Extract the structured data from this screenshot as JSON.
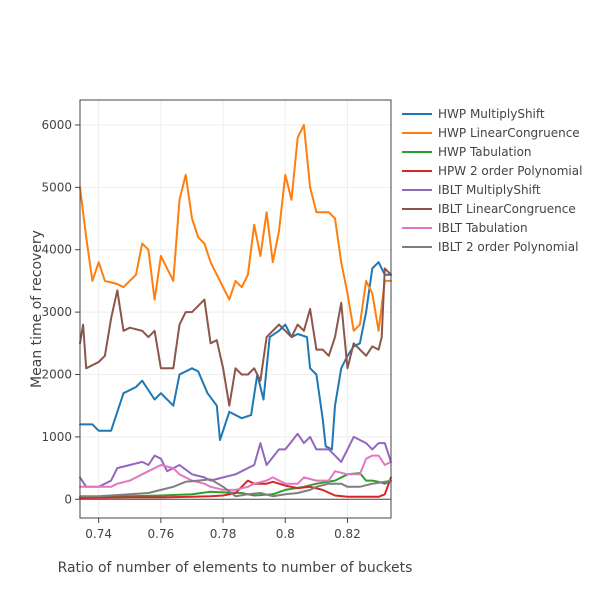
{
  "chart_data": {
    "type": "line",
    "xlabel": "Ratio of number of elements to number of buckets",
    "ylabel": "Mean time of recovery",
    "xlim": [
      0.734,
      0.834
    ],
    "ylim": [
      -300,
      6400
    ],
    "x_ticks": [
      0.74,
      0.76,
      0.78,
      0.8,
      0.82
    ],
    "x_tick_labels": [
      "0.74",
      "0.76",
      "0.78",
      "0.8",
      "0.82"
    ],
    "y_ticks": [
      0,
      1000,
      2000,
      3000,
      4000,
      5000,
      6000
    ],
    "y_tick_labels": [
      "0",
      "1000",
      "2000",
      "3000",
      "4000",
      "5000",
      "6000"
    ],
    "grid": true,
    "legend_position": "right",
    "series": [
      {
        "name": "HWP MultiplyShift",
        "color": "#1f77b4",
        "x": [
          0.734,
          0.738,
          0.74,
          0.744,
          0.748,
          0.752,
          0.754,
          0.758,
          0.76,
          0.764,
          0.766,
          0.77,
          0.772,
          0.775,
          0.778,
          0.779,
          0.782,
          0.786,
          0.789,
          0.791,
          0.793,
          0.795,
          0.798,
          0.8,
          0.802,
          0.804,
          0.807,
          0.808,
          0.81,
          0.812,
          0.813,
          0.815,
          0.816,
          0.818,
          0.82,
          0.822,
          0.824,
          0.826,
          0.828,
          0.83,
          0.831,
          0.832,
          0.834
        ],
        "y": [
          1200,
          1200,
          1100,
          1100,
          1700,
          1800,
          1900,
          1600,
          1700,
          1500,
          2000,
          2100,
          2050,
          1700,
          1500,
          950,
          1400,
          1300,
          1350,
          2000,
          1600,
          2600,
          2700,
          2800,
          2600,
          2650,
          2600,
          2100,
          2000,
          1300,
          850,
          800,
          1500,
          2100,
          2300,
          2450,
          2500,
          3000,
          3700,
          3800,
          3700,
          3600,
          3600
        ]
      },
      {
        "name": "HWP LinearCongruence",
        "color": "#ff7f0e",
        "x": [
          0.734,
          0.736,
          0.738,
          0.74,
          0.742,
          0.746,
          0.748,
          0.752,
          0.754,
          0.756,
          0.758,
          0.76,
          0.762,
          0.764,
          0.766,
          0.768,
          0.77,
          0.772,
          0.774,
          0.776,
          0.778,
          0.78,
          0.782,
          0.784,
          0.786,
          0.788,
          0.79,
          0.792,
          0.794,
          0.796,
          0.798,
          0.8,
          0.802,
          0.804,
          0.806,
          0.808,
          0.81,
          0.812,
          0.814,
          0.816,
          0.818,
          0.82,
          0.822,
          0.824,
          0.826,
          0.828,
          0.83,
          0.832,
          0.834
        ],
        "y": [
          5000,
          4200,
          3500,
          3800,
          3500,
          3450,
          3400,
          3600,
          4100,
          4000,
          3200,
          3900,
          3700,
          3500,
          4800,
          5200,
          4500,
          4200,
          4100,
          3800,
          3600,
          3400,
          3200,
          3500,
          3400,
          3600,
          4400,
          3900,
          4600,
          3800,
          4300,
          5200,
          4800,
          5800,
          6000,
          5000,
          4600,
          4600,
          4600,
          4500,
          3800,
          3300,
          2700,
          2800,
          3500,
          3300,
          2700,
          3500,
          3500
        ]
      },
      {
        "name": "HWP Tabulation",
        "color": "#2ca02c",
        "x": [
          0.734,
          0.74,
          0.75,
          0.76,
          0.77,
          0.776,
          0.78,
          0.786,
          0.79,
          0.796,
          0.8,
          0.806,
          0.81,
          0.816,
          0.82,
          0.824,
          0.826,
          0.828,
          0.83,
          0.832,
          0.834
        ],
        "y": [
          20,
          40,
          50,
          60,
          80,
          120,
          110,
          100,
          60,
          80,
          150,
          200,
          250,
          300,
          400,
          420,
          300,
          300,
          280,
          250,
          300
        ]
      },
      {
        "name": "HPW 2 order Polynomial",
        "color": "#d62728",
        "x": [
          0.734,
          0.75,
          0.76,
          0.77,
          0.776,
          0.78,
          0.784,
          0.788,
          0.79,
          0.794,
          0.796,
          0.8,
          0.804,
          0.808,
          0.812,
          0.816,
          0.82,
          0.826,
          0.83,
          0.832,
          0.834
        ],
        "y": [
          20,
          30,
          30,
          40,
          50,
          60,
          100,
          300,
          250,
          250,
          280,
          220,
          180,
          200,
          150,
          60,
          40,
          40,
          40,
          80,
          350
        ]
      },
      {
        "name": "IBLT MultiplyShift",
        "color": "#9467bd",
        "x": [
          0.734,
          0.736,
          0.74,
          0.744,
          0.746,
          0.75,
          0.754,
          0.756,
          0.758,
          0.76,
          0.762,
          0.764,
          0.766,
          0.77,
          0.774,
          0.776,
          0.78,
          0.784,
          0.788,
          0.79,
          0.792,
          0.794,
          0.798,
          0.8,
          0.804,
          0.806,
          0.808,
          0.81,
          0.814,
          0.816,
          0.818,
          0.82,
          0.822,
          0.824,
          0.826,
          0.828,
          0.83,
          0.832,
          0.834
        ],
        "y": [
          350,
          200,
          200,
          300,
          500,
          550,
          600,
          550,
          700,
          650,
          450,
          500,
          550,
          400,
          350,
          300,
          350,
          400,
          500,
          550,
          900,
          550,
          800,
          800,
          1050,
          900,
          1000,
          800,
          800,
          700,
          600,
          800,
          1000,
          950,
          900,
          800,
          900,
          900,
          600
        ]
      },
      {
        "name": "IBLT LinearCongruence",
        "color": "#8c564b",
        "x": [
          0.734,
          0.735,
          0.736,
          0.74,
          0.742,
          0.744,
          0.746,
          0.748,
          0.75,
          0.754,
          0.756,
          0.758,
          0.76,
          0.764,
          0.766,
          0.768,
          0.77,
          0.772,
          0.774,
          0.776,
          0.778,
          0.78,
          0.782,
          0.784,
          0.786,
          0.788,
          0.79,
          0.792,
          0.794,
          0.796,
          0.798,
          0.8,
          0.802,
          0.804,
          0.806,
          0.808,
          0.81,
          0.812,
          0.814,
          0.816,
          0.818,
          0.82,
          0.822,
          0.824,
          0.826,
          0.828,
          0.83,
          0.831,
          0.832,
          0.834
        ],
        "y": [
          2500,
          2800,
          2100,
          2200,
          2300,
          2900,
          3350,
          2700,
          2750,
          2700,
          2600,
          2700,
          2100,
          2100,
          2800,
          3000,
          3000,
          3100,
          3200,
          2500,
          2550,
          2100,
          1500,
          2100,
          2000,
          2000,
          2100,
          1900,
          2600,
          2700,
          2800,
          2700,
          2600,
          2800,
          2700,
          3050,
          2400,
          2400,
          2300,
          2600,
          3150,
          2100,
          2500,
          2400,
          2300,
          2450,
          2400,
          2600,
          3700,
          3600
        ]
      },
      {
        "name": "IBLT Tabulation",
        "color": "#e377c2",
        "x": [
          0.734,
          0.74,
          0.744,
          0.746,
          0.75,
          0.754,
          0.756,
          0.76,
          0.764,
          0.766,
          0.77,
          0.774,
          0.776,
          0.78,
          0.784,
          0.788,
          0.79,
          0.794,
          0.796,
          0.8,
          0.804,
          0.806,
          0.81,
          0.814,
          0.816,
          0.82,
          0.824,
          0.826,
          0.828,
          0.83,
          0.832,
          0.834
        ],
        "y": [
          200,
          200,
          200,
          250,
          300,
          400,
          450,
          550,
          500,
          400,
          300,
          250,
          200,
          150,
          150,
          200,
          250,
          300,
          350,
          250,
          250,
          350,
          300,
          300,
          450,
          400,
          400,
          650,
          700,
          700,
          550,
          600
        ]
      },
      {
        "name": "IBLT 2 order Polynomial",
        "color": "#7f7f7f",
        "x": [
          0.734,
          0.74,
          0.75,
          0.756,
          0.76,
          0.764,
          0.768,
          0.772,
          0.776,
          0.78,
          0.784,
          0.788,
          0.792,
          0.796,
          0.8,
          0.804,
          0.808,
          0.81,
          0.814,
          0.818,
          0.82,
          0.824,
          0.828,
          0.832,
          0.834
        ],
        "y": [
          50,
          50,
          80,
          100,
          150,
          200,
          280,
          300,
          320,
          200,
          50,
          80,
          100,
          50,
          80,
          100,
          150,
          200,
          250,
          250,
          200,
          200,
          250,
          280,
          300
        ]
      }
    ]
  }
}
